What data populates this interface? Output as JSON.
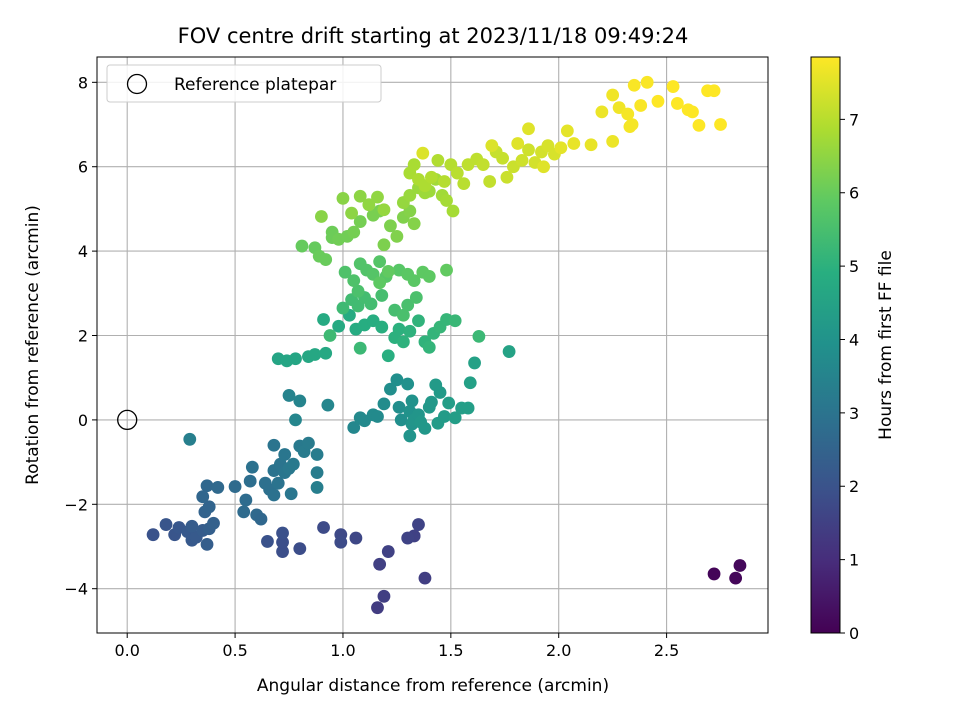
{
  "chart_data": {
    "type": "scatter",
    "title": "FOV centre drift starting at 2023/11/18 09:49:24",
    "xlabel": "Angular distance from reference (arcmin)",
    "ylabel": "Rotation from reference (arcmin)",
    "xlim": [
      -0.14,
      2.97
    ],
    "ylim": [
      -5.05,
      8.6
    ],
    "xticks": [
      0.0,
      0.5,
      1.0,
      1.5,
      2.0,
      2.5
    ],
    "xtick_labels": [
      "0.0",
      "0.5",
      "1.0",
      "1.5",
      "2.0",
      "2.5"
    ],
    "yticks": [
      -4,
      -2,
      0,
      2,
      4,
      6,
      8
    ],
    "ytick_labels": [
      "−4",
      "−2",
      "0",
      "2",
      "4",
      "6",
      "8"
    ],
    "grid": true,
    "legend": {
      "placement": "top-left",
      "entries": [
        "Reference platepar"
      ]
    },
    "reference_point": {
      "x": 0.0,
      "y": 0.0,
      "label": "Reference platepar"
    },
    "colorbar": {
      "label": "Hours from first FF file",
      "colormap": "viridis",
      "range": [
        0,
        7.85
      ],
      "ticks": [
        0,
        1,
        2,
        3,
        4,
        5,
        6,
        7
      ],
      "tick_labels": [
        "0",
        "1",
        "2",
        "3",
        "4",
        "5",
        "6",
        "7"
      ]
    },
    "points": [
      [
        2.72,
        -3.65,
        0.1
      ],
      [
        2.82,
        -3.75,
        0.12
      ],
      [
        2.84,
        -3.45,
        0.15
      ],
      [
        1.16,
        -4.45,
        1.4
      ],
      [
        1.19,
        -4.18,
        1.45
      ],
      [
        1.38,
        -3.75,
        1.45
      ],
      [
        1.17,
        -3.42,
        1.5
      ],
      [
        1.21,
        -3.12,
        1.55
      ],
      [
        1.33,
        -2.75,
        1.55
      ],
      [
        1.3,
        -2.8,
        1.6
      ],
      [
        1.35,
        -2.48,
        1.6
      ],
      [
        1.06,
        -2.8,
        1.7
      ],
      [
        0.99,
        -2.72,
        1.75
      ],
      [
        0.91,
        -2.55,
        1.8
      ],
      [
        0.99,
        -2.9,
        1.8
      ],
      [
        0.8,
        -3.05,
        1.85
      ],
      [
        0.72,
        -3.12,
        1.9
      ],
      [
        0.72,
        -2.9,
        1.9
      ],
      [
        0.72,
        -2.68,
        1.95
      ],
      [
        0.65,
        -2.88,
        2.0
      ],
      [
        0.12,
        -2.72,
        2.0
      ],
      [
        0.18,
        -2.48,
        2.1
      ],
      [
        0.22,
        -2.72,
        2.1
      ],
      [
        0.24,
        -2.55,
        2.15
      ],
      [
        0.28,
        -2.65,
        2.2
      ],
      [
        0.3,
        -2.85,
        2.2
      ],
      [
        0.32,
        -2.78,
        2.25
      ],
      [
        0.3,
        -2.52,
        2.3
      ],
      [
        0.35,
        -2.62,
        2.3
      ],
      [
        0.37,
        -2.95,
        2.35
      ],
      [
        0.38,
        -2.58,
        2.4
      ],
      [
        0.4,
        -2.45,
        2.45
      ],
      [
        0.36,
        -2.18,
        2.5
      ],
      [
        0.38,
        -2.06,
        2.55
      ],
      [
        0.35,
        -1.82,
        2.6
      ],
      [
        0.37,
        -1.56,
        2.65
      ],
      [
        0.42,
        -1.6,
        2.7
      ],
      [
        0.5,
        -1.58,
        2.75
      ],
      [
        0.55,
        -1.9,
        2.8
      ],
      [
        0.54,
        -2.18,
        2.75
      ],
      [
        0.6,
        -2.25,
        2.7
      ],
      [
        0.62,
        -2.35,
        2.65
      ],
      [
        0.57,
        -1.45,
        2.85
      ],
      [
        0.58,
        -1.12,
        2.95
      ],
      [
        0.64,
        -1.5,
        2.9
      ],
      [
        0.66,
        -1.65,
        2.9
      ],
      [
        0.68,
        -1.78,
        2.95
      ],
      [
        0.7,
        -1.5,
        3.0
      ],
      [
        0.68,
        -1.2,
        3.0
      ],
      [
        0.71,
        -1.05,
        3.05
      ],
      [
        0.73,
        -1.25,
        3.1
      ],
      [
        0.75,
        -1.15,
        3.15
      ],
      [
        0.73,
        -0.82,
        3.1
      ],
      [
        0.68,
        -0.6,
        3.05
      ],
      [
        0.76,
        -1.75,
        3.1
      ],
      [
        0.77,
        -1.05,
        3.2
      ],
      [
        0.8,
        -0.62,
        3.2
      ],
      [
        0.82,
        -0.75,
        3.25
      ],
      [
        0.84,
        -0.55,
        3.25
      ],
      [
        0.88,
        -0.82,
        3.3
      ],
      [
        0.88,
        -1.25,
        3.3
      ],
      [
        0.88,
        -1.6,
        3.35
      ],
      [
        0.29,
        -0.46,
        3.4
      ],
      [
        0.75,
        0.58,
        3.5
      ],
      [
        0.8,
        0.45,
        3.55
      ],
      [
        0.78,
        0.0,
        3.6
      ],
      [
        0.93,
        0.35,
        3.6
      ],
      [
        1.05,
        -0.18,
        3.65
      ],
      [
        1.08,
        0.05,
        3.7
      ],
      [
        1.1,
        -0.02,
        3.7
      ],
      [
        1.14,
        0.12,
        3.75
      ],
      [
        1.16,
        0.08,
        3.75
      ],
      [
        1.19,
        0.38,
        3.8
      ],
      [
        1.22,
        0.73,
        3.85
      ],
      [
        1.26,
        0.3,
        3.85
      ],
      [
        1.27,
        0.0,
        3.9
      ],
      [
        1.25,
        0.95,
        3.9
      ],
      [
        1.3,
        0.85,
        3.95
      ],
      [
        1.32,
        0.45,
        4.0
      ],
      [
        1.31,
        0.2,
        4.0
      ],
      [
        1.31,
        -0.38,
        4.05
      ],
      [
        1.32,
        -0.1,
        4.05
      ],
      [
        1.33,
        0.0,
        4.1
      ],
      [
        1.35,
        0.12,
        4.1
      ],
      [
        1.36,
        -0.05,
        4.15
      ],
      [
        1.38,
        -0.2,
        4.15
      ],
      [
        1.4,
        0.3,
        4.2
      ],
      [
        1.41,
        0.42,
        4.2
      ],
      [
        1.43,
        0.83,
        4.25
      ],
      [
        1.45,
        0.65,
        4.25
      ],
      [
        1.44,
        -0.08,
        4.3
      ],
      [
        1.47,
        0.08,
        4.3
      ],
      [
        1.49,
        0.4,
        4.35
      ],
      [
        1.52,
        0.05,
        4.35
      ],
      [
        1.55,
        0.28,
        4.4
      ],
      [
        1.58,
        0.28,
        4.4
      ],
      [
        1.59,
        0.88,
        4.45
      ],
      [
        1.61,
        1.35,
        4.5
      ],
      [
        1.77,
        1.62,
        4.55
      ],
      [
        0.7,
        1.45,
        4.6
      ],
      [
        0.74,
        1.4,
        4.65
      ],
      [
        0.78,
        1.45,
        4.65
      ],
      [
        0.84,
        1.5,
        4.7
      ],
      [
        0.87,
        1.55,
        4.7
      ],
      [
        0.92,
        1.58,
        4.75
      ],
      [
        0.91,
        2.38,
        4.8
      ],
      [
        0.98,
        2.22,
        4.8
      ],
      [
        1.03,
        2.48,
        4.85
      ],
      [
        1.06,
        2.15,
        4.85
      ],
      [
        1.1,
        2.25,
        4.9
      ],
      [
        1.14,
        2.35,
        4.9
      ],
      [
        1.18,
        2.2,
        4.95
      ],
      [
        1.21,
        1.52,
        4.95
      ],
      [
        1.24,
        1.95,
        5.0
      ],
      [
        1.26,
        2.15,
        5.0
      ],
      [
        1.28,
        1.85,
        5.05
      ],
      [
        1.31,
        2.1,
        5.05
      ],
      [
        1.35,
        2.35,
        5.1
      ],
      [
        1.38,
        1.85,
        5.1
      ],
      [
        1.4,
        1.72,
        5.15
      ],
      [
        1.42,
        2.05,
        5.15
      ],
      [
        1.45,
        2.2,
        5.2
      ],
      [
        1.48,
        2.38,
        5.2
      ],
      [
        1.52,
        2.35,
        5.25
      ],
      [
        1.63,
        1.98,
        5.3
      ],
      [
        1.08,
        1.7,
        5.3
      ],
      [
        0.94,
        2.0,
        5.35
      ],
      [
        1.0,
        2.65,
        5.35
      ],
      [
        1.04,
        2.85,
        5.4
      ],
      [
        1.07,
        2.7,
        5.4
      ],
      [
        1.1,
        2.9,
        5.45
      ],
      [
        1.13,
        2.75,
        5.45
      ],
      [
        1.18,
        2.95,
        5.5
      ],
      [
        1.24,
        2.6,
        5.5
      ],
      [
        1.28,
        2.48,
        5.55
      ],
      [
        1.3,
        2.72,
        5.55
      ],
      [
        1.34,
        2.9,
        5.6
      ],
      [
        1.07,
        3.05,
        5.6
      ],
      [
        1.01,
        3.5,
        5.65
      ],
      [
        1.05,
        3.3,
        5.65
      ],
      [
        1.08,
        3.7,
        5.7
      ],
      [
        1.11,
        3.55,
        5.7
      ],
      [
        1.14,
        3.45,
        5.75
      ],
      [
        1.17,
        3.75,
        5.75
      ],
      [
        1.2,
        3.4,
        5.8
      ],
      [
        1.26,
        3.55,
        5.8
      ],
      [
        1.3,
        3.45,
        5.85
      ],
      [
        1.33,
        3.3,
        5.85
      ],
      [
        1.37,
        3.5,
        5.9
      ],
      [
        1.4,
        3.4,
        5.9
      ],
      [
        1.48,
        3.55,
        5.95
      ],
      [
        1.17,
        3.25,
        5.9
      ],
      [
        1.21,
        3.52,
        5.95
      ],
      [
        0.81,
        4.12,
        6.0
      ],
      [
        0.87,
        4.08,
        6.0
      ],
      [
        0.89,
        3.88,
        6.05
      ],
      [
        0.92,
        3.8,
        6.05
      ],
      [
        0.95,
        4.45,
        6.1
      ],
      [
        0.95,
        4.32,
        6.1
      ],
      [
        0.98,
        4.28,
        6.15
      ],
      [
        1.02,
        4.35,
        6.15
      ],
      [
        1.05,
        4.45,
        6.2
      ],
      [
        1.08,
        4.7,
        6.2
      ],
      [
        1.14,
        4.85,
        6.25
      ],
      [
        1.17,
        4.95,
        6.25
      ],
      [
        1.19,
        4.15,
        6.3
      ],
      [
        1.22,
        4.6,
        6.3
      ],
      [
        1.25,
        4.35,
        6.35
      ],
      [
        1.28,
        4.8,
        6.35
      ],
      [
        1.31,
        4.95,
        6.4
      ],
      [
        1.33,
        4.65,
        6.4
      ],
      [
        0.9,
        4.82,
        6.45
      ],
      [
        1.0,
        5.25,
        6.45
      ],
      [
        1.04,
        4.9,
        6.5
      ],
      [
        1.08,
        5.3,
        6.5
      ],
      [
        1.12,
        5.1,
        6.55
      ],
      [
        1.16,
        5.28,
        6.55
      ],
      [
        1.19,
        4.98,
        6.6
      ],
      [
        1.28,
        5.15,
        6.6
      ],
      [
        1.31,
        5.32,
        6.65
      ],
      [
        1.35,
        5.5,
        6.65
      ],
      [
        1.38,
        5.38,
        6.7
      ],
      [
        1.4,
        5.42,
        6.7
      ],
      [
        1.43,
        5.7,
        6.75
      ],
      [
        1.46,
        5.32,
        6.75
      ],
      [
        1.48,
        5.2,
        6.8
      ],
      [
        1.51,
        4.95,
        6.8
      ],
      [
        1.31,
        5.85,
        6.85
      ],
      [
        1.33,
        6.05,
        6.85
      ],
      [
        1.35,
        5.7,
        6.9
      ],
      [
        1.38,
        5.55,
        6.9
      ],
      [
        1.41,
        5.75,
        6.95
      ],
      [
        1.44,
        6.15,
        6.95
      ],
      [
        1.47,
        5.65,
        7.0
      ],
      [
        1.5,
        6.05,
        7.0
      ],
      [
        1.53,
        5.85,
        7.05
      ],
      [
        1.56,
        5.6,
        7.05
      ],
      [
        1.58,
        6.05,
        7.1
      ],
      [
        1.62,
        6.18,
        7.1
      ],
      [
        1.65,
        6.05,
        7.15
      ],
      [
        1.68,
        5.65,
        7.15
      ],
      [
        1.71,
        6.35,
        7.2
      ],
      [
        1.74,
        6.2,
        7.2
      ],
      [
        1.76,
        5.75,
        7.25
      ],
      [
        1.79,
        6.0,
        7.25
      ],
      [
        1.83,
        6.15,
        7.3
      ],
      [
        1.86,
        6.4,
        7.3
      ],
      [
        1.89,
        6.1,
        7.35
      ],
      [
        1.92,
        6.35,
        7.35
      ],
      [
        1.95,
        6.5,
        7.4
      ],
      [
        1.98,
        6.3,
        7.4
      ],
      [
        1.37,
        6.32,
        7.45
      ],
      [
        1.69,
        6.5,
        7.45
      ],
      [
        1.81,
        6.55,
        7.5
      ],
      [
        1.86,
        6.9,
        7.5
      ],
      [
        1.93,
        6.0,
        7.5
      ],
      [
        2.01,
        6.45,
        7.55
      ],
      [
        2.04,
        6.85,
        7.55
      ],
      [
        2.07,
        6.55,
        7.6
      ],
      [
        2.15,
        6.52,
        7.6
      ],
      [
        2.2,
        7.3,
        7.65
      ],
      [
        2.25,
        6.6,
        7.65
      ],
      [
        2.25,
        7.7,
        7.7
      ],
      [
        2.28,
        7.4,
        7.7
      ],
      [
        2.32,
        7.25,
        7.75
      ],
      [
        2.33,
        6.95,
        7.75
      ],
      [
        2.34,
        7.0,
        7.75
      ],
      [
        2.35,
        7.93,
        7.8
      ],
      [
        2.38,
        7.45,
        7.8
      ],
      [
        2.41,
        8.0,
        7.8
      ],
      [
        2.46,
        7.55,
        7.85
      ],
      [
        2.53,
        7.9,
        7.85
      ],
      [
        2.55,
        7.5,
        7.85
      ],
      [
        2.6,
        7.35,
        7.85
      ],
      [
        2.62,
        7.3,
        7.85
      ],
      [
        2.65,
        6.98,
        7.85
      ],
      [
        2.69,
        7.8,
        7.85
      ],
      [
        2.72,
        7.8,
        7.85
      ],
      [
        2.75,
        7.0,
        7.85
      ]
    ]
  }
}
